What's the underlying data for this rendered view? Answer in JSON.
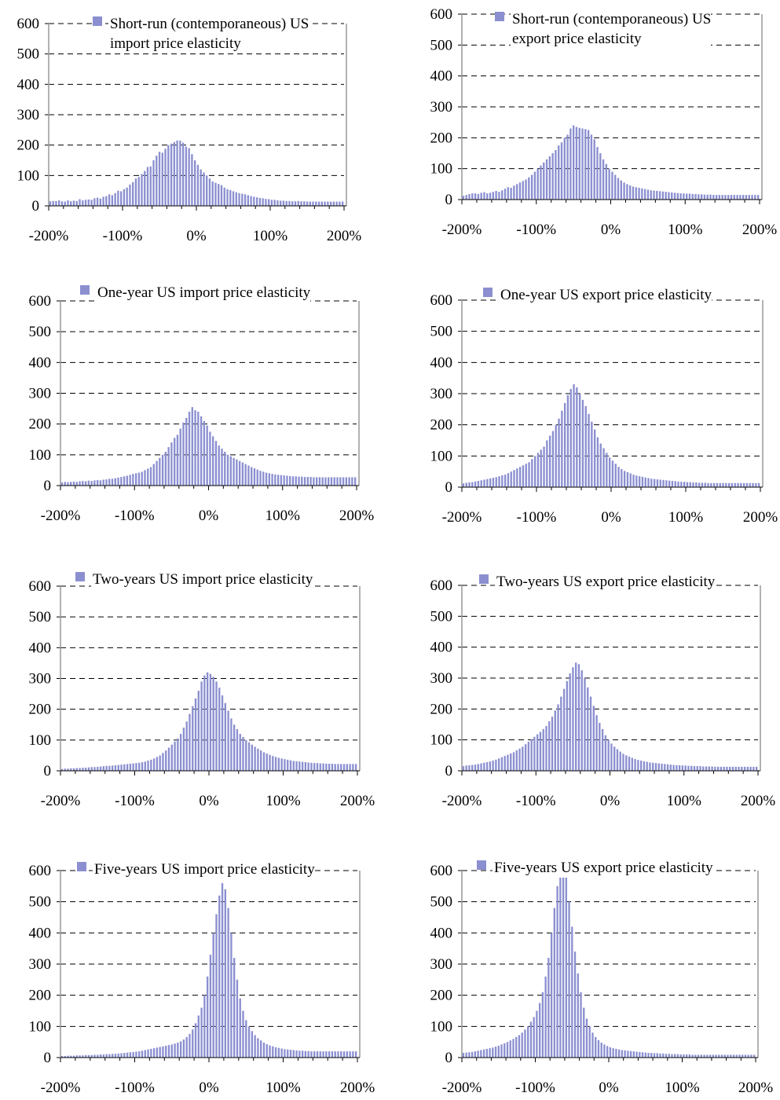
{
  "colors": {
    "bar": "#8b8fd0",
    "gridline": "#000000",
    "axis": "#999999"
  },
  "chart_data": [
    {
      "type": "bar",
      "legend": "Short-run (contemporaneous) US import price elasticity",
      "legend_lines": [
        "Short-run (contemporaneous) US",
        "import price elasticity"
      ],
      "legend_position": "top",
      "x_tick_labels": [
        "-200%",
        "-100%",
        "0%",
        "100%",
        "200%"
      ],
      "y_tick_labels": [
        "0",
        "100",
        "200",
        "300",
        "400",
        "500",
        "600"
      ],
      "xlim": [
        -2.0,
        2.0
      ],
      "ylim": [
        0,
        600
      ],
      "grid": "horizontal-dashed",
      "bin_width": 0.04,
      "x_start": -2.0,
      "values": [
        15,
        16,
        16,
        18,
        15,
        14,
        18,
        15,
        17,
        16,
        22,
        18,
        20,
        21,
        20,
        25,
        27,
        24,
        30,
        32,
        38,
        35,
        42,
        50,
        48,
        55,
        60,
        70,
        78,
        90,
        95,
        105,
        115,
        128,
        130,
        150,
        165,
        178,
        175,
        188,
        200,
        205,
        210,
        215,
        215,
        208,
        195,
        190,
        170,
        150,
        135,
        120,
        110,
        100,
        90,
        80,
        76,
        72,
        68,
        60,
        55,
        52,
        48,
        45,
        42,
        40,
        38,
        35,
        32,
        30,
        28,
        26,
        25,
        23,
        22,
        20,
        20,
        18,
        17,
        17,
        16,
        16,
        15,
        15,
        16,
        15,
        15,
        14,
        14,
        14,
        14,
        14,
        14,
        14,
        14,
        14,
        14,
        14,
        14,
        14
      ]
    },
    {
      "type": "bar",
      "legend": "Short-run (contemporaneous) US export price elasticity",
      "legend_lines": [
        "Short-run (contemporaneous) US",
        "export price elasticity"
      ],
      "legend_position": "top",
      "x_tick_labels": [
        "-200%",
        "-100%",
        "0%",
        "100%",
        "200%"
      ],
      "y_tick_labels": [
        "0",
        "100",
        "200",
        "300",
        "400",
        "500",
        "600"
      ],
      "xlim": [
        -2.0,
        2.0
      ],
      "ylim": [
        0,
        600
      ],
      "grid": "horizontal-dashed",
      "bin_width": 0.04,
      "x_start": -2.0,
      "values": [
        12,
        15,
        18,
        20,
        20,
        18,
        22,
        24,
        20,
        22,
        25,
        28,
        25,
        30,
        35,
        40,
        38,
        45,
        50,
        55,
        60,
        65,
        72,
        80,
        90,
        100,
        110,
        120,
        130,
        140,
        150,
        160,
        175,
        185,
        200,
        210,
        230,
        240,
        235,
        232,
        230,
        228,
        225,
        210,
        195,
        170,
        150,
        130,
        115,
        100,
        90,
        80,
        70,
        62,
        55,
        50,
        46,
        42,
        40,
        38,
        36,
        34,
        32,
        30,
        29,
        28,
        27,
        26,
        25,
        24,
        23,
        22,
        21,
        20,
        20,
        19,
        19,
        18,
        18,
        17,
        17,
        16,
        16,
        16,
        15,
        15,
        15,
        15,
        15,
        15,
        15,
        15,
        15,
        15,
        15,
        15,
        15,
        15,
        15,
        15
      ]
    },
    {
      "type": "bar",
      "legend": "One-year US import price elasticity",
      "legend_lines": [
        "One-year US import price elasticity"
      ],
      "legend_position": "top",
      "x_tick_labels": [
        "-200%",
        "-100%",
        "0%",
        "100%",
        "200%"
      ],
      "y_tick_labels": [
        "0",
        "100",
        "200",
        "300",
        "400",
        "500",
        "600"
      ],
      "xlim": [
        -2.0,
        2.0
      ],
      "ylim": [
        0,
        600
      ],
      "grid": "horizontal-dashed",
      "bin_width": 0.04,
      "x_start": -2.0,
      "values": [
        10,
        12,
        11,
        12,
        13,
        12,
        14,
        15,
        14,
        16,
        15,
        17,
        18,
        17,
        19,
        20,
        22,
        22,
        24,
        26,
        28,
        30,
        32,
        35,
        38,
        40,
        42,
        45,
        50,
        55,
        60,
        70,
        80,
        90,
        100,
        110,
        125,
        140,
        155,
        165,
        185,
        205,
        220,
        240,
        255,
        245,
        240,
        225,
        210,
        195,
        175,
        160,
        145,
        130,
        120,
        110,
        100,
        95,
        90,
        85,
        80,
        75,
        70,
        65,
        60,
        56,
        52,
        48,
        45,
        42,
        40,
        38,
        36,
        35,
        34,
        33,
        32,
        31,
        30,
        30,
        29,
        29,
        28,
        28,
        28,
        27,
        27,
        27,
        27,
        27,
        27,
        27,
        27,
        27,
        27,
        27,
        27,
        27,
        27,
        27
      ]
    },
    {
      "type": "bar",
      "legend": "One-year US export price elasticity",
      "legend_lines": [
        "One-year US export price elasticity"
      ],
      "legend_position": "top",
      "x_tick_labels": [
        "-200%",
        "-100%",
        "0%",
        "100%",
        "200%"
      ],
      "y_tick_labels": [
        "0",
        "100",
        "200",
        "300",
        "400",
        "500",
        "600"
      ],
      "xlim": [
        -2.0,
        2.0
      ],
      "ylim": [
        0,
        600
      ],
      "grid": "horizontal-dashed",
      "bin_width": 0.04,
      "x_start": -2.0,
      "values": [
        12,
        14,
        15,
        16,
        18,
        20,
        22,
        24,
        26,
        28,
        30,
        32,
        35,
        38,
        40,
        45,
        50,
        55,
        60,
        65,
        70,
        75,
        80,
        90,
        100,
        110,
        120,
        130,
        150,
        165,
        180,
        200,
        220,
        245,
        270,
        295,
        315,
        330,
        320,
        300,
        280,
        260,
        235,
        210,
        185,
        160,
        140,
        125,
        110,
        95,
        85,
        75,
        65,
        58,
        52,
        48,
        44,
        40,
        37,
        35,
        33,
        31,
        29,
        27,
        26,
        25,
        24,
        23,
        22,
        21,
        20,
        19,
        18,
        17,
        17,
        16,
        16,
        15,
        15,
        14,
        14,
        14,
        13,
        13,
        13,
        13,
        13,
        13,
        13,
        13,
        13,
        13,
        13,
        13,
        13,
        13,
        13,
        13,
        13,
        13
      ]
    },
    {
      "type": "bar",
      "legend": "Two-years US import price elasticity",
      "legend_lines": [
        "Two-years US import price elasticity"
      ],
      "legend_position": "top",
      "x_tick_labels": [
        "-200%",
        "-100%",
        "0%",
        "100%",
        "200%"
      ],
      "y_tick_labels": [
        "0",
        "100",
        "200",
        "300",
        "400",
        "500",
        "600"
      ],
      "xlim": [
        -2.0,
        2.0
      ],
      "ylim": [
        0,
        600
      ],
      "grid": "horizontal-dashed",
      "bin_width": 0.04,
      "x_start": -2.0,
      "values": [
        6,
        7,
        7,
        8,
        8,
        9,
        9,
        10,
        10,
        11,
        12,
        12,
        13,
        14,
        15,
        16,
        16,
        17,
        18,
        19,
        20,
        21,
        22,
        23,
        24,
        25,
        26,
        28,
        30,
        33,
        36,
        40,
        45,
        50,
        58,
        66,
        75,
        85,
        95,
        105,
        120,
        140,
        160,
        185,
        210,
        235,
        260,
        290,
        310,
        320,
        315,
        305,
        290,
        270,
        245,
        220,
        195,
        170,
        150,
        135,
        120,
        110,
        100,
        92,
        85,
        78,
        72,
        66,
        60,
        56,
        52,
        48,
        45,
        42,
        40,
        38,
        36,
        34,
        32,
        31,
        30,
        29,
        28,
        27,
        26,
        25,
        25,
        24,
        24,
        23,
        23,
        23,
        22,
        22,
        22,
        22,
        22,
        22,
        22,
        22
      ]
    },
    {
      "type": "bar",
      "legend": "Two-years US export price elasticity",
      "legend_lines": [
        "Two-years US export price elasticity"
      ],
      "legend_position": "top",
      "x_tick_labels": [
        "-200%",
        "-100%",
        "0%",
        "100%",
        "200%"
      ],
      "y_tick_labels": [
        "0",
        "100",
        "200",
        "300",
        "400",
        "500",
        "600"
      ],
      "xlim": [
        -2.0,
        2.0
      ],
      "ylim": [
        0,
        600
      ],
      "grid": "horizontal-dashed",
      "bin_width": 0.04,
      "x_start": -2.0,
      "values": [
        15,
        17,
        18,
        19,
        20,
        22,
        24,
        26,
        28,
        30,
        33,
        36,
        40,
        44,
        48,
        52,
        56,
        60,
        66,
        72,
        78,
        86,
        94,
        102,
        110,
        118,
        126,
        135,
        145,
        160,
        175,
        195,
        215,
        240,
        265,
        290,
        315,
        335,
        350,
        345,
        325,
        300,
        270,
        240,
        210,
        180,
        155,
        135,
        115,
        100,
        88,
        78,
        70,
        62,
        55,
        50,
        46,
        42,
        38,
        35,
        33,
        31,
        29,
        27,
        26,
        25,
        24,
        23,
        22,
        21,
        20,
        19,
        18,
        18,
        17,
        17,
        16,
        16,
        15,
        15,
        15,
        14,
        14,
        14,
        14,
        13,
        13,
        13,
        13,
        13,
        13,
        13,
        13,
        13,
        13,
        13,
        13,
        13,
        13,
        13
      ]
    },
    {
      "type": "bar",
      "legend": "Five-years US import price elasticity",
      "legend_lines": [
        "Five-years US import price elasticity"
      ],
      "legend_position": "top",
      "x_tick_labels": [
        "-200%",
        "-100%",
        "0%",
        "100%",
        "200%"
      ],
      "y_tick_labels": [
        "0",
        "100",
        "200",
        "300",
        "400",
        "500",
        "600"
      ],
      "xlim": [
        -2.0,
        2.0
      ],
      "ylim": [
        0,
        600
      ],
      "grid": "horizontal-dashed",
      "bin_width": 0.04,
      "x_start": -2.0,
      "values": [
        5,
        5,
        6,
        6,
        6,
        7,
        7,
        7,
        8,
        8,
        8,
        9,
        9,
        10,
        10,
        11,
        11,
        12,
        12,
        13,
        14,
        15,
        16,
        17,
        18,
        19,
        20,
        22,
        24,
        26,
        28,
        30,
        32,
        34,
        36,
        38,
        40,
        42,
        45,
        48,
        52,
        58,
        66,
        76,
        90,
        110,
        135,
        160,
        200,
        260,
        330,
        400,
        460,
        520,
        560,
        540,
        480,
        400,
        320,
        250,
        190,
        150,
        120,
        100,
        85,
        72,
        62,
        55,
        48,
        43,
        39,
        36,
        33,
        31,
        29,
        27,
        26,
        25,
        24,
        23,
        22,
        22,
        21,
        21,
        20,
        20,
        20,
        20,
        20,
        20,
        20,
        20,
        20,
        20,
        20,
        20,
        20,
        20,
        20,
        20
      ]
    },
    {
      "type": "bar",
      "legend": "Five-years US export price elasticity",
      "legend_lines": [
        "Five-years US export price elasticity"
      ],
      "legend_position": "top",
      "x_tick_labels": [
        "-200%",
        "-100%",
        "0%",
        "100%",
        "200%"
      ],
      "y_tick_labels": [
        "0",
        "100",
        "200",
        "300",
        "400",
        "500",
        "600"
      ],
      "xlim": [
        -2.0,
        2.0
      ],
      "ylim": [
        0,
        600
      ],
      "grid": "horizontal-dashed",
      "bin_width": 0.04,
      "x_start": -2.0,
      "values": [
        15,
        16,
        17,
        18,
        20,
        22,
        24,
        26,
        28,
        30,
        32,
        35,
        38,
        42,
        46,
        50,
        55,
        60,
        66,
        72,
        80,
        90,
        100,
        115,
        130,
        150,
        175,
        210,
        260,
        320,
        400,
        480,
        550,
        600,
        600,
        580,
        500,
        420,
        340,
        270,
        210,
        160,
        125,
        100,
        80,
        66,
        56,
        48,
        42,
        37,
        33,
        30,
        28,
        26,
        24,
        23,
        22,
        21,
        20,
        19,
        18,
        17,
        16,
        15,
        15,
        14,
        14,
        13,
        13,
        12,
        12,
        11,
        11,
        11,
        10,
        10,
        10,
        10,
        9,
        9,
        9,
        9,
        9,
        9,
        9,
        9,
        9,
        9,
        9,
        9,
        9,
        9,
        9,
        9,
        9,
        9,
        9,
        9,
        9,
        9
      ]
    }
  ]
}
